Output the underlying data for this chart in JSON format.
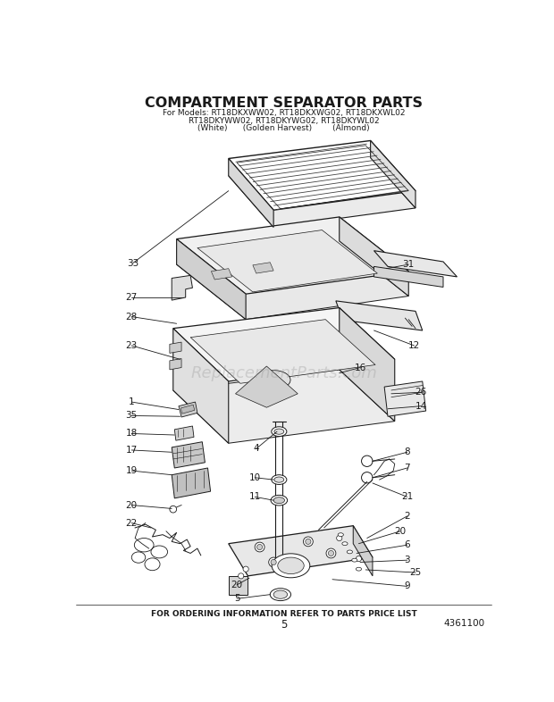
{
  "title": "COMPARTMENT SEPARATOR PARTS",
  "subtitle_line1": "For Models: RT18DKXWW02, RT18DKXWG02, RT18DKXWL02",
  "subtitle_line2": "RT18DKYWW02, RT18DKYWG02, RT18DKYWL02",
  "subtitle_line3": "(White)      (Golden Harvest)        (Almond)",
  "footer_text": "FOR ORDERING INFORMATION REFER TO PARTS PRICE LIST",
  "page_number": "5",
  "part_number": "4361100",
  "watermark": "ReplacementParts.com",
  "bg_color": "#ffffff",
  "lc": "#1a1a1a",
  "tc": "#1a1a1a"
}
